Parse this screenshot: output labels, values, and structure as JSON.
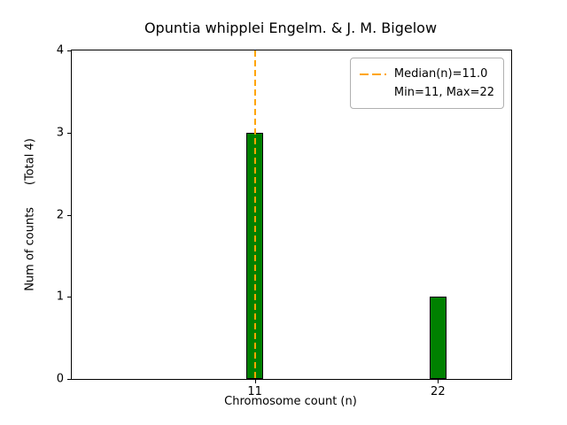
{
  "figure": {
    "title": "Opuntia whipplei Engelm. & J. M. Bigelow",
    "xlabel": "Chromosome count (n)",
    "ylabel": "Num of counts      (Total 4)"
  },
  "legend": {
    "median_label": "Median(n)=11.0",
    "minmax_label": "Min=11, Max=22"
  },
  "chart_data": {
    "type": "bar",
    "title": "Opuntia whipplei Engelm. & J. M. Bigelow",
    "xlabel": "Chromosome count (n)",
    "ylabel": "Num of counts      (Total 4)",
    "x": [
      11,
      22
    ],
    "values": [
      3,
      1
    ],
    "total_counts": 4,
    "bar_width": 1.0,
    "bar_color": "#008000",
    "bar_edge_color": "#000000",
    "median": 11.0,
    "min": 11,
    "max": 22,
    "median_line_color": "#FFA500",
    "median_line_style": "dashed",
    "xlim": [
      0,
      26.4
    ],
    "ylim": [
      0,
      4
    ],
    "xticks": [
      11,
      22
    ],
    "yticks": [
      0,
      1,
      2,
      3,
      4
    ],
    "grid": false,
    "legend_position": "upper right",
    "legend_entries": [
      "Median(n)=11.0",
      "Min=11, Max=22"
    ]
  }
}
